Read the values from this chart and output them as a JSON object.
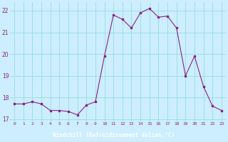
{
  "hours": [
    0,
    1,
    2,
    3,
    4,
    5,
    6,
    7,
    8,
    9,
    10,
    11,
    12,
    13,
    14,
    15,
    16,
    17,
    18,
    19,
    20,
    21,
    22,
    23
  ],
  "values": [
    17.7,
    17.7,
    17.8,
    17.7,
    17.4,
    17.4,
    17.35,
    17.2,
    17.65,
    17.8,
    19.9,
    21.8,
    21.6,
    21.2,
    21.9,
    22.1,
    21.7,
    21.75,
    21.2,
    19.0,
    19.9,
    18.5,
    17.6,
    17.4
  ],
  "line_color": "#882288",
  "marker": "s",
  "marker_size": 2,
  "bg_color": "#cceeff",
  "grid_color": "#99dddd",
  "xlabel": "Windchill (Refroidissement éolien,°C)",
  "xlabel_bg": "#882288",
  "xlabel_text_color": "#ffffff",
  "ylim": [
    16.9,
    22.4
  ],
  "yticks": [
    17,
    18,
    19,
    20,
    21,
    22
  ],
  "xlim": [
    -0.5,
    23.5
  ]
}
